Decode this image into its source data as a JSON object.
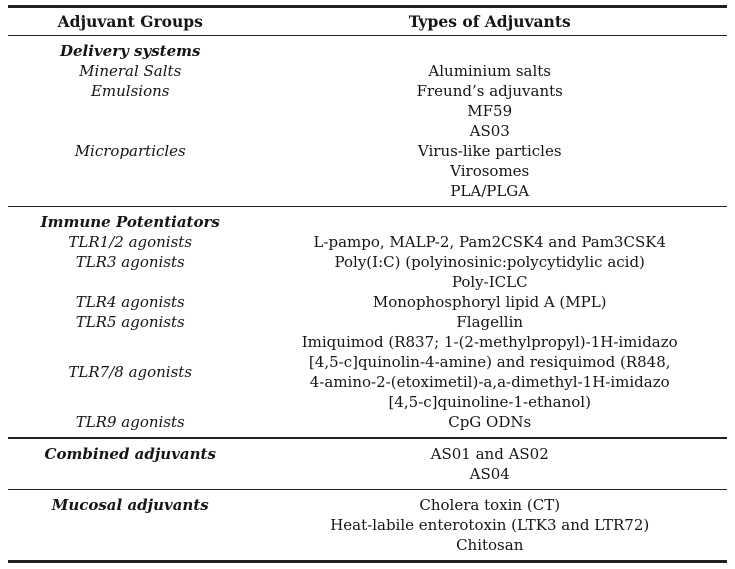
{
  "colors": {
    "background": "#ffffff",
    "text": "#151515",
    "rule": "#222222"
  },
  "table": {
    "header": {
      "col1": "Adjuvant Groups",
      "col2": "Types of Adjuvants"
    },
    "sections": [
      {
        "rows": [
          {
            "group": "Delivery systems",
            "style": "head",
            "types": []
          },
          {
            "group": "Mineral Salts",
            "style": "sub",
            "types": [
              "Aluminium salts"
            ]
          },
          {
            "group": "Emulsions",
            "style": "sub",
            "types": [
              "Freund’s adjuvants",
              "MF59",
              "AS03"
            ]
          },
          {
            "group": "Microparticles",
            "style": "sub",
            "types": [
              "Virus-like particles",
              "Virosomes",
              "PLA/PLGA"
            ]
          }
        ]
      },
      {
        "rows": [
          {
            "group": "Immune Potentiators",
            "style": "head",
            "types": []
          },
          {
            "group": "TLR1/2 agonists",
            "style": "sub",
            "types": [
              "L-pampo, MALP-2, Pam2CSK4 and Pam3CSK4"
            ]
          },
          {
            "group": "TLR3 agonists",
            "style": "sub",
            "types": [
              "Poly(I:C) (polyinosinic:polycytidylic acid)",
              "Poly-ICLC"
            ]
          },
          {
            "group": "TLR4 agonists",
            "style": "sub",
            "types": [
              "Monophosphoryl lipid A (MPL)"
            ]
          },
          {
            "group": "TLR5 agonists",
            "style": "sub",
            "types": [
              "Flagellin"
            ]
          },
          {
            "group": "TLR7/8 agonists",
            "style": "sub",
            "valign": "middle",
            "types": [
              "Imiquimod (R837; 1-(2-methylpropyl)-1H-imidazo",
              "[4,5-c]quinolin-4-amine) and resiquimod (R848,",
              "4-amino-2-(etoximetil)-a,a-dimethyl-1H-imidazo",
              "[4,5-c]quinoline-1-ethanol)"
            ]
          },
          {
            "group": "TLR9 agonists",
            "style": "sub",
            "types": [
              "CpG ODNs"
            ]
          }
        ]
      },
      {
        "rows": [
          {
            "group": "Combined adjuvants",
            "style": "head",
            "types": [
              "AS01 and AS02",
              "AS04"
            ]
          }
        ]
      },
      {
        "rows": [
          {
            "group": "Mucosal adjuvants",
            "style": "head",
            "types": [
              "Cholera toxin (CT)",
              "Heat-labile enterotoxin (LTK3 and LTR72)",
              "Chitosan"
            ]
          }
        ]
      }
    ]
  }
}
